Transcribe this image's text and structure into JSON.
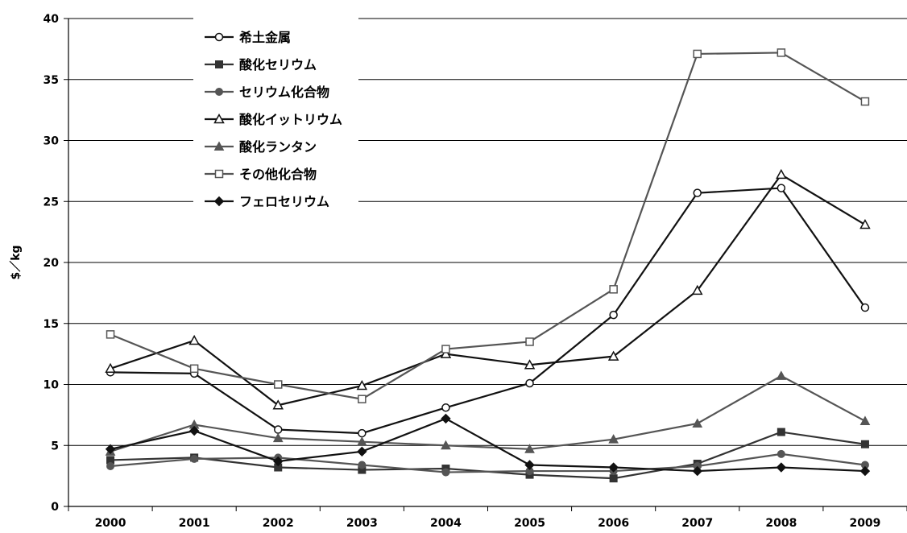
{
  "chart_data": {
    "type": "line",
    "title": "",
    "xlabel": "",
    "ylabel": "$／kg",
    "ylim": [
      0,
      40
    ],
    "yticks": [
      "0",
      "5",
      "10",
      "15",
      "20",
      "25",
      "30",
      "35",
      "40"
    ],
    "categories": [
      "2000",
      "2001",
      "2002",
      "2003",
      "2004",
      "2005",
      "2006",
      "2007",
      "2008",
      "2009"
    ],
    "grid": "horizontal",
    "legend_position": "top-left",
    "series": [
      {
        "name": "希土金属",
        "marker": "circle-open",
        "color": "#111111",
        "values": [
          11.0,
          10.9,
          6.3,
          6.0,
          8.1,
          10.1,
          15.7,
          25.7,
          26.1,
          16.3
        ]
      },
      {
        "name": "酸化セリウム",
        "marker": "square-filled",
        "color": "#333333",
        "values": [
          3.8,
          4.0,
          3.2,
          3.0,
          3.1,
          2.6,
          2.3,
          3.5,
          6.1,
          5.1
        ]
      },
      {
        "name": "セリウム化合物",
        "marker": "circle-filled",
        "color": "#555555",
        "values": [
          3.3,
          3.9,
          4.0,
          3.4,
          2.8,
          2.9,
          2.9,
          3.3,
          4.3,
          3.4
        ]
      },
      {
        "name": "酸化イットリウム",
        "marker": "triangle-open",
        "color": "#111111",
        "values": [
          11.3,
          13.6,
          8.3,
          9.9,
          12.5,
          11.6,
          12.3,
          17.7,
          27.2,
          23.1
        ]
      },
      {
        "name": "酸化ランタン",
        "marker": "triangle-filled",
        "color": "#555555",
        "values": [
          4.5,
          6.7,
          5.6,
          5.3,
          5.0,
          4.7,
          5.5,
          6.8,
          10.7,
          7.0
        ]
      },
      {
        "name": "その他化合物",
        "marker": "square-open",
        "color": "#555555",
        "values": [
          14.1,
          11.3,
          10.0,
          8.8,
          12.9,
          13.5,
          17.8,
          37.1,
          37.2,
          33.2
        ]
      },
      {
        "name": "フェロセリウム",
        "marker": "diamond-filled",
        "color": "#111111",
        "values": [
          4.7,
          6.2,
          3.7,
          4.5,
          7.2,
          3.4,
          3.2,
          2.9,
          3.2,
          2.9
        ]
      }
    ]
  }
}
